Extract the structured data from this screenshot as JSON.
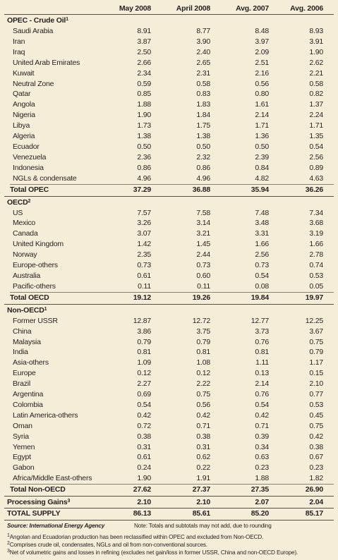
{
  "header": {
    "columns": [
      "May 2008",
      "April 2008",
      "Avg. 2007",
      "Avg. 2006"
    ]
  },
  "sections": [
    {
      "title": "OPEC - Crude Oil",
      "note": "1",
      "rows": [
        [
          "Saudi Arabia",
          "8.91",
          "8.77",
          "8.48",
          "8.93"
        ],
        [
          "Iran",
          "3.87",
          "3.90",
          "3.97",
          "3.91"
        ],
        [
          "Iraq",
          "2.50",
          "2.40",
          "2.09",
          "1.90"
        ],
        [
          "United Arab Emirates",
          "2.66",
          "2.65",
          "2.51",
          "2.62"
        ],
        [
          "Kuwait",
          "2.34",
          "2.31",
          "2.16",
          "2.21"
        ],
        [
          "Neutral Zone",
          "0.59",
          "0.58",
          "0.56",
          "0.58"
        ],
        [
          "Qatar",
          "0.85",
          "0.83",
          "0.80",
          "0.82"
        ],
        [
          "Angola",
          "1.88",
          "1.83",
          "1.61",
          "1.37"
        ],
        [
          "Nigeria",
          "1.90",
          "1.84",
          "2.14",
          "2.24"
        ],
        [
          "Libya",
          "1.73",
          "1.75",
          "1.71",
          "1.71"
        ],
        [
          "Algeria",
          "1.38",
          "1.38",
          "1.36",
          "1.35"
        ],
        [
          "Ecuador",
          "0.50",
          "0.50",
          "0.50",
          "0.54"
        ],
        [
          "Venezuela",
          "2.36",
          "2.32",
          "2.39",
          "2.56"
        ],
        [
          "Indonesia",
          "0.86",
          "0.86",
          "0.84",
          "0.89"
        ],
        [
          "NGLs & condensate",
          "4.96",
          "4.96",
          "4.82",
          "4.63"
        ]
      ],
      "total": [
        "Total OPEC",
        "37.29",
        "36.88",
        "35.94",
        "36.26"
      ]
    },
    {
      "title": "OECD",
      "note": "2",
      "rows": [
        [
          "US",
          "7.57",
          "7.58",
          "7.48",
          "7.34"
        ],
        [
          "Mexico",
          "3.26",
          "3.14",
          "3.48",
          "3.68"
        ],
        [
          "Canada",
          "3.07",
          "3.21",
          "3.31",
          "3.19"
        ],
        [
          "United Kingdom",
          "1.42",
          "1.45",
          "1.66",
          "1.66"
        ],
        [
          "Norway",
          "2.35",
          "2.44",
          "2.56",
          "2.78"
        ],
        [
          "Europe-others",
          "0.73",
          "0.73",
          "0.73",
          "0.74"
        ],
        [
          "Australia",
          "0.61",
          "0.60",
          "0.54",
          "0.53"
        ],
        [
          "Pacific-others",
          "0.11",
          "0.11",
          "0.08",
          "0.05"
        ]
      ],
      "total": [
        "Total OECD",
        "19.12",
        "19.26",
        "19.84",
        "19.97"
      ]
    },
    {
      "title": "Non-OECD",
      "note": "1",
      "rows": [
        [
          "Former USSR",
          "12.87",
          "12.72",
          "12.77",
          "12.25"
        ],
        [
          "China",
          "3.86",
          "3.75",
          "3.73",
          "3.67"
        ],
        [
          "Malaysia",
          "0.79",
          "0.79",
          "0.76",
          "0.75"
        ],
        [
          "India",
          "0.81",
          "0.81",
          "0.81",
          "0.79"
        ],
        [
          "Asia-others",
          "1.09",
          "1.08",
          "1.11",
          "1.17"
        ],
        [
          "Europe",
          "0.12",
          "0.12",
          "0.13",
          "0.15"
        ],
        [
          "Brazil",
          "2.27",
          "2.22",
          "2.14",
          "2.10"
        ],
        [
          "Argentina",
          "0.69",
          "0.75",
          "0.76",
          "0.77"
        ],
        [
          "Colombia",
          "0.54",
          "0.56",
          "0.54",
          "0.53"
        ],
        [
          "Latin America-others",
          "0.42",
          "0.42",
          "0.42",
          "0.45"
        ],
        [
          "Oman",
          "0.72",
          "0.71",
          "0.71",
          "0.75"
        ],
        [
          "Syria",
          "0.38",
          "0.38",
          "0.39",
          "0.42"
        ],
        [
          "Yemen",
          "0.31",
          "0.31",
          "0.34",
          "0.38"
        ],
        [
          "Egypt",
          "0.61",
          "0.62",
          "0.63",
          "0.67"
        ],
        [
          "Gabon",
          "0.24",
          "0.22",
          "0.23",
          "0.23"
        ],
        [
          "Africa/Middle East-others",
          "1.90",
          "1.91",
          "1.88",
          "1.82"
        ]
      ],
      "total": [
        "Total Non-OECD",
        "27.62",
        "27.37",
        "27.35",
        "26.90"
      ]
    }
  ],
  "processing": {
    "label": "Processing Gains",
    "note": "3",
    "values": [
      "2.10",
      "2.10",
      "2.07",
      "2.04"
    ]
  },
  "total_supply": {
    "label": "TOTAL SUPPLY",
    "values": [
      "86.13",
      "85.61",
      "85.20",
      "85.17"
    ]
  },
  "source": {
    "text": "Source: International Energy Agency",
    "note": "Note: Totals and subtotals may not add, due to rounding"
  },
  "footnotes": [
    {
      "mark": "1",
      "text": "Angolan and Ecuadorian production has been reclassified within OPEC and excluded from Non-OECD."
    },
    {
      "mark": "2",
      "text": "Comprises crude oil, condensates, NGLs and oil from non-conventional sources."
    },
    {
      "mark": "3",
      "text": "Net of volumetric gains and losses in refining (excludes net gain/loss in former USSR, China and non-OECD Europe)."
    }
  ]
}
